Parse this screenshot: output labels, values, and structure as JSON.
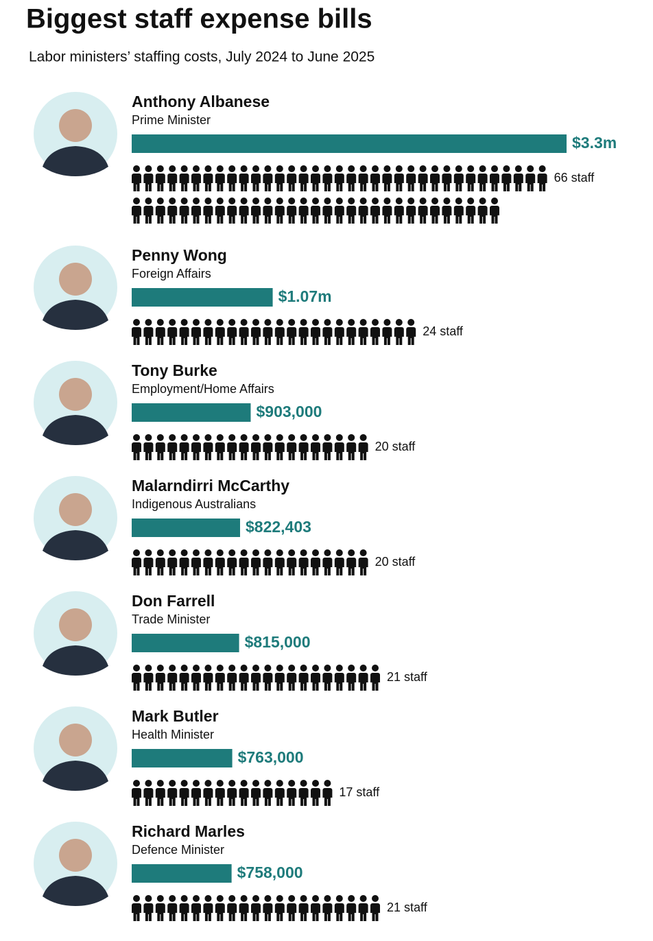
{
  "chart_data": {
    "type": "bar",
    "title": "Biggest staff expense bills",
    "subtitle": "Labor ministers’ staffing costs, July 2024 to June 2025",
    "categories": [
      "Anthony Albanese",
      "Penny Wong",
      "Tony Burke",
      "Malarndirri McCarthy",
      "Don Farrell",
      "Mark Butler",
      "Richard Marles"
    ],
    "roles": [
      "Prime Minister",
      "Foreign Affairs",
      "Employment/Home Affairs",
      "Indigenous Australians",
      "Trade Minister",
      "Health Minister",
      "Defence Minister"
    ],
    "color": "#1e7b7b",
    "values": [
      3300000,
      1070000,
      903000,
      822403,
      815000,
      763000,
      758000
    ],
    "value_labels": [
      "$3.3m",
      "$1.07m",
      "$903,000",
      "$822,403",
      "$815,000",
      "$763,000",
      "$758,000"
    ],
    "staff": [
      66,
      24,
      20,
      20,
      21,
      17,
      21
    ],
    "staff_labels": [
      "66 staff",
      "24 staff",
      "20 staff",
      "20 staff",
      "21 staff",
      "17 staff",
      "21 staff"
    ]
  }
}
